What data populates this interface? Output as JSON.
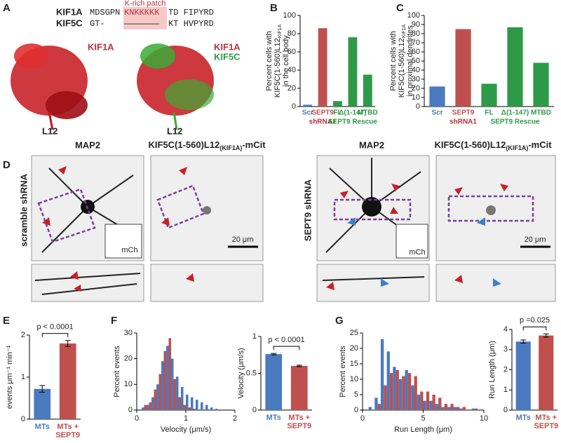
{
  "panel_labels": [
    "A",
    "B",
    "C",
    "D",
    "E",
    "F",
    "G"
  ],
  "panel_a": {
    "patch_label": "K-rich patch",
    "rows": [
      {
        "name": "KIF1A",
        "pre": "MDSGPN",
        "patch": "KNKKKKK",
        "post": "TD FIPYRD"
      },
      {
        "name": "KIF5C",
        "pre": "GT-",
        "patch": "———————",
        "post": "KT HVPYRD"
      }
    ],
    "structure_labels": [
      "KIF1A",
      "KIF1A",
      "KIF5C",
      "L12",
      "L12"
    ]
  },
  "panel_d": {
    "columns": [
      "MAP2",
      "KIF5C(1-560)L12"
    ],
    "subscript": "(KIF1A)",
    "suffix": "-mCit",
    "rows": [
      "scramble shRNA",
      "SEPT9 shRNA"
    ],
    "inset": "mCh",
    "scale_bar": "20 μm"
  },
  "chart_data": [
    {
      "type": "bar",
      "ylabel": [
        "Percent cells with",
        "KIF5C(1-560)L12",
        "in the cell body"
      ],
      "ylabel_sub": "KIF1A",
      "categories": [
        "Scr",
        "SEPT9",
        "FL",
        "Δ(1-147)",
        "MTBD"
      ],
      "values": [
        2,
        86,
        6,
        76,
        35
      ],
      "colors": [
        "#4a7ac0",
        "#c0504d",
        "#2e9a48",
        "#2e9a48",
        "#2e9a48"
      ],
      "group_labels": [
        "shRNA1",
        "SEPT9 Rescue"
      ],
      "group_colors": [
        "#b0303a",
        "#2e9a48"
      ],
      "ylim": [
        0,
        100
      ],
      "yticks": [
        0,
        20,
        40,
        60,
        80,
        100
      ]
    },
    {
      "type": "bar",
      "ylabel": [
        "Percent cells with",
        "KIF5C(1-560)L12",
        "in proximal dendrites"
      ],
      "ylabel_sub": "KIF1A",
      "categories": [
        "Scr",
        "SEPT9",
        "FL",
        "Δ(1-147)",
        "MTBD"
      ],
      "values": [
        22,
        85,
        25,
        87,
        48
      ],
      "colors": [
        "#4a7ac0",
        "#c0504d",
        "#2e9a48",
        "#2e9a48",
        "#2e9a48"
      ],
      "group_labels": [
        "shRNA1",
        "SEPT9 Rescue"
      ],
      "group_colors": [
        "#b0303a",
        "#2e9a48"
      ],
      "ylim": [
        0,
        100
      ],
      "yticks": [
        0,
        10,
        20,
        30,
        40,
        50,
        60,
        70,
        80,
        90,
        100
      ]
    },
    {
      "type": "bar",
      "ylabel": "events μm⁻¹ min⁻¹",
      "categories": [
        "MTs",
        "MTs + SEPT9"
      ],
      "values": [
        0.72,
        1.8
      ],
      "errors": [
        0.08,
        0.07
      ],
      "colors": [
        "#4a7ac0",
        "#c0504d"
      ],
      "ylim": [
        0,
        2
      ],
      "yticks": [
        0,
        1,
        2
      ],
      "annotation": "p < 0.0001"
    },
    {
      "type": "histogram",
      "xlabel": "Velocity (μm/s)",
      "ylabel": "Percent events",
      "bins": [
        0,
        0.1,
        0.2,
        0.3,
        0.4,
        0.5,
        0.6,
        0.7,
        0.8,
        0.9,
        1.0,
        1.1,
        1.2,
        1.3,
        1.4,
        1.5,
        1.6,
        1.7,
        1.8,
        1.9
      ],
      "series": [
        {
          "color": "#4a7ac0",
          "values": [
            0,
            1,
            2,
            5,
            10,
            19,
            25,
            20,
            13,
            9,
            6,
            5,
            4,
            3,
            2,
            1,
            0.5,
            0,
            0
          ]
        },
        {
          "color": "#c0504d",
          "values": [
            0,
            2,
            3,
            8,
            14,
            23,
            28,
            12,
            5,
            2,
            1,
            0.5,
            0,
            0,
            0,
            0,
            0,
            0,
            0
          ]
        }
      ],
      "xlim": [
        0,
        2
      ],
      "xticks": [
        0,
        1,
        2
      ],
      "ylim": [
        0,
        30
      ],
      "yticks": [
        0,
        10,
        20,
        30
      ]
    },
    {
      "type": "bar",
      "ylabel": "Velocity (μm/s)",
      "categories": [
        "MTs",
        "MTs + SEPT9"
      ],
      "values": [
        0.76,
        0.6
      ],
      "errors": [
        0.01,
        0.01
      ],
      "colors": [
        "#4a7ac0",
        "#c0504d"
      ],
      "ylim": [
        0,
        1
      ],
      "yticks": [
        0,
        0.5,
        1
      ],
      "annotation": "p < 0.0001"
    },
    {
      "type": "histogram",
      "xlabel": "Run Length (μm)",
      "ylabel": "Percent events",
      "bins": [
        0.5,
        1,
        1.5,
        2,
        2.5,
        3,
        3.5,
        4,
        4.5,
        5,
        5.5,
        6,
        6.5,
        7,
        7.5,
        8,
        8.5,
        9,
        9.5
      ],
      "series": [
        {
          "color": "#4a7ac0",
          "values": [
            1,
            4,
            23,
            19,
            14,
            10,
            13,
            8,
            5,
            3,
            3,
            2,
            1,
            1,
            1,
            0.5,
            0,
            0.5
          ]
        },
        {
          "color": "#c0504d",
          "values": [
            0,
            2,
            8,
            12,
            13,
            11,
            12,
            11,
            6,
            6,
            5,
            4,
            2,
            2,
            1,
            1,
            0,
            0.5
          ]
        }
      ],
      "xlim": [
        0,
        10
      ],
      "xticks": [
        0,
        5,
        10
      ],
      "ylim": [
        0,
        25
      ],
      "yticks": [
        0,
        5,
        10,
        15,
        20,
        25
      ]
    },
    {
      "type": "bar",
      "ylabel": "Run Length (μm)",
      "categories": [
        "MTs",
        "MTs + SEPT9"
      ],
      "values": [
        3.4,
        3.7
      ],
      "errors": [
        0.08,
        0.08
      ],
      "colors": [
        "#4a7ac0",
        "#c0504d"
      ],
      "ylim": [
        0,
        4
      ],
      "yticks": [
        0,
        1,
        2,
        3,
        4
      ],
      "annotation": "p =0.025"
    }
  ]
}
